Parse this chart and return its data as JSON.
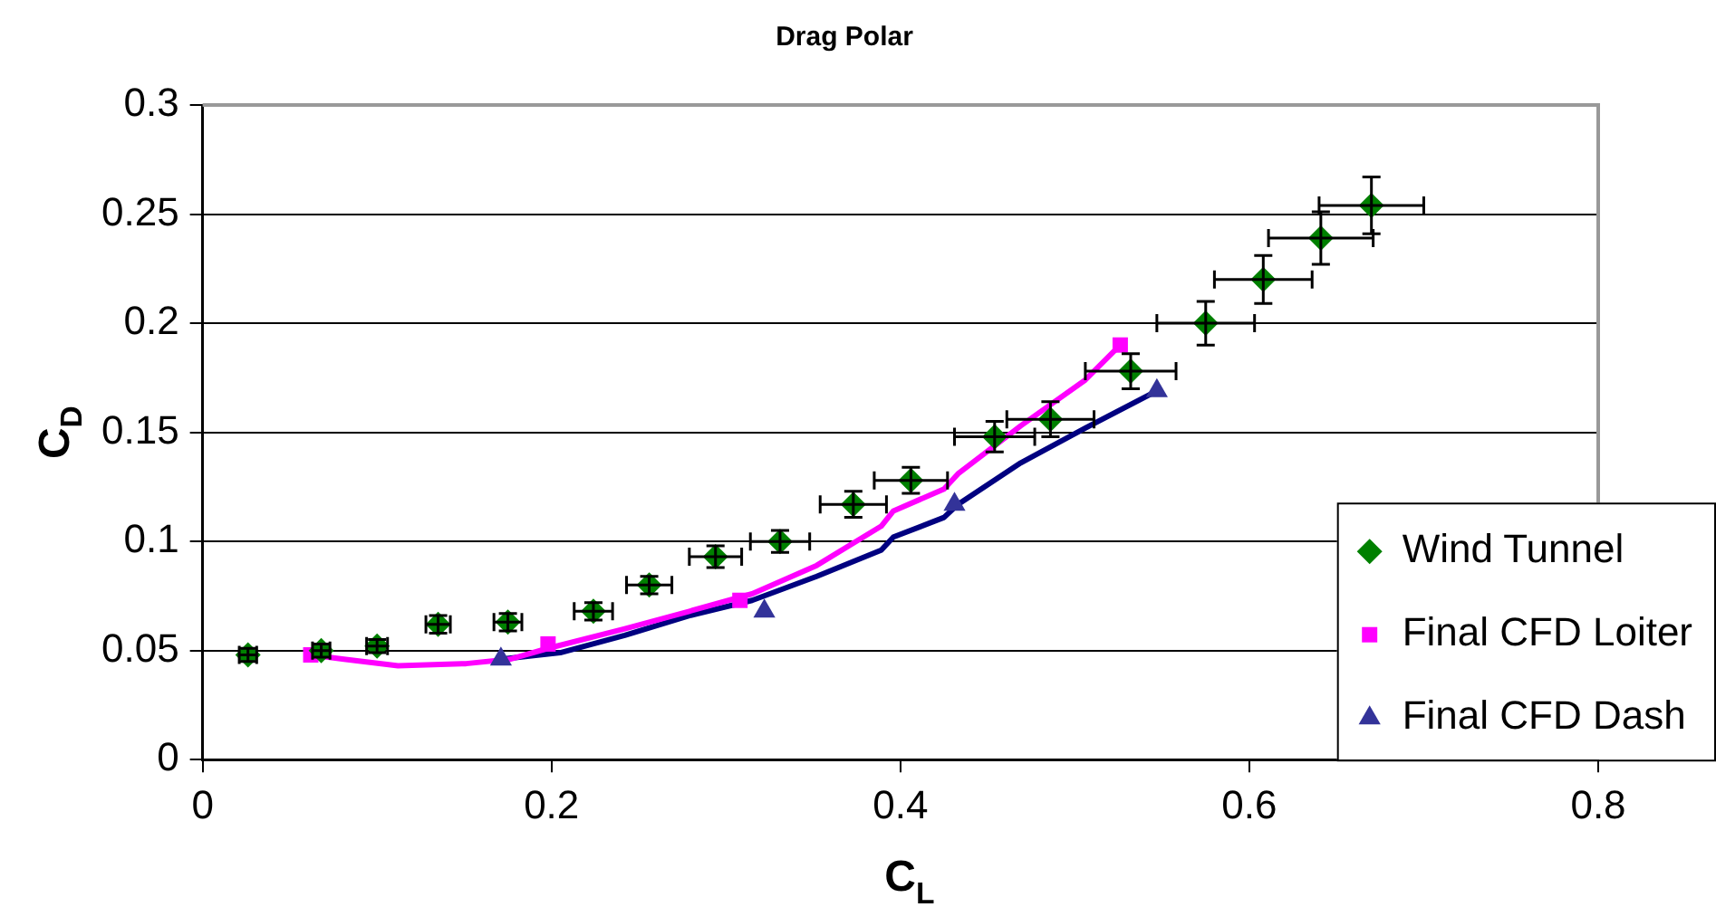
{
  "chart_data": {
    "type": "scatter",
    "title": "Drag Polar",
    "xlabel": "C$_{L}$",
    "ylabel": "C$_{D}$",
    "xlim": [
      0,
      0.8
    ],
    "xticks": [
      0,
      0.2,
      0.4,
      0.6,
      0.8
    ],
    "ylim": [
      0,
      0.3
    ],
    "yticks": [
      0,
      0.05,
      0.1,
      0.15,
      0.2,
      0.25,
      0.3
    ],
    "grid": "y",
    "legend": "bottom right",
    "series": [
      {
        "name": "Wind Tunnel",
        "type": "scatter",
        "marker": "diamond",
        "color": "#008000",
        "x": [
          0.026,
          0.068,
          0.1,
          0.135,
          0.175,
          0.224,
          0.256,
          0.294,
          0.331,
          0.373,
          0.406,
          0.454,
          0.486,
          0.532,
          0.575,
          0.608,
          0.641,
          0.67
        ],
        "values": [
          0.048,
          0.05,
          0.052,
          0.062,
          0.063,
          0.068,
          0.08,
          0.093,
          0.1,
          0.117,
          0.128,
          0.148,
          0.156,
          0.178,
          0.2,
          0.22,
          0.239,
          0.254
        ],
        "xerrors": [
          0.005,
          0.005,
          0.006,
          0.007,
          0.008,
          0.011,
          0.013,
          0.015,
          0.017,
          0.019,
          0.021,
          0.023,
          0.025,
          0.026,
          0.028,
          0.028,
          0.03,
          0.03
        ],
        "errors": [
          0.003,
          0.003,
          0.003,
          0.004,
          0.004,
          0.004,
          0.004,
          0.005,
          0.005,
          0.006,
          0.006,
          0.007,
          0.008,
          0.008,
          0.01,
          0.011,
          0.012,
          0.013
        ]
      },
      {
        "type": "line",
        "marker": "none",
        "color": "#ff00ff",
        "x": [
          0.062,
          0.081,
          0.112,
          0.151,
          0.176,
          0.198,
          0.242,
          0.279,
          0.315,
          0.352,
          0.389,
          0.396,
          0.425,
          0.433,
          0.469,
          0.506,
          0.526
        ],
        "values": [
          0.048,
          0.046,
          0.043,
          0.044,
          0.046,
          0.051,
          0.06,
          0.068,
          0.076,
          0.089,
          0.107,
          0.114,
          0.124,
          0.131,
          0.153,
          0.174,
          0.19
        ]
      },
      {
        "type": "line",
        "marker": "none",
        "color": "#000080",
        "x": [
          0.171,
          0.205,
          0.242,
          0.279,
          0.315,
          0.352,
          0.389,
          0.396,
          0.425,
          0.433,
          0.469,
          0.506,
          0.547
        ],
        "values": [
          0.046,
          0.049,
          0.057,
          0.066,
          0.073,
          0.084,
          0.096,
          0.102,
          0.111,
          0.117,
          0.136,
          0.152,
          0.169
        ]
      },
      {
        "name": "Final CFD Loiter",
        "type": "scatter",
        "marker": "square",
        "color": "#ff00ff",
        "x": [
          0.062,
          0.198,
          0.308,
          0.526
        ],
        "values": [
          0.048,
          0.053,
          0.073,
          0.19
        ]
      },
      {
        "name": "Final CFD Dash",
        "type": "scatter",
        "marker": "triangle",
        "color": "#333399",
        "x": [
          0.171,
          0.322,
          0.431,
          0.547
        ],
        "values": [
          0.046,
          0.068,
          0.117,
          0.169
        ]
      }
    ]
  }
}
